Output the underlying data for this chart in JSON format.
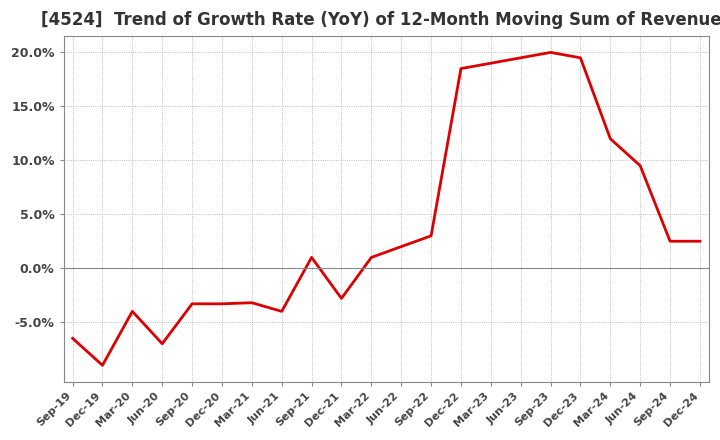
{
  "title": "[4524]  Trend of Growth Rate (YoY) of 12-Month Moving Sum of Revenues",
  "title_fontsize": 12,
  "line_color": "#dd0000",
  "background_color": "#ffffff",
  "plot_bg_color": "#ffffff",
  "grid_color": "#aaaaaa",
  "ylim": [
    -0.105,
    0.215
  ],
  "yticks": [
    -0.05,
    0.0,
    0.05,
    0.1,
    0.15,
    0.2
  ],
  "ytick_labels": [
    "-5.0%",
    "0.0%",
    "5.0%",
    "10.0%",
    "15.0%",
    "20.0%"
  ],
  "dates": [
    "Sep-19",
    "Dec-19",
    "Mar-20",
    "Jun-20",
    "Sep-20",
    "Dec-20",
    "Mar-21",
    "Jun-21",
    "Sep-21",
    "Dec-21",
    "Mar-22",
    "Jun-22",
    "Sep-22",
    "Dec-22",
    "Mar-23",
    "Jun-23",
    "Sep-23",
    "Dec-23",
    "Mar-24",
    "Jun-24",
    "Sep-24",
    "Dec-24"
  ],
  "values": [
    -0.065,
    -0.09,
    -0.04,
    -0.07,
    -0.033,
    -0.033,
    -0.032,
    -0.04,
    0.01,
    -0.028,
    0.01,
    0.02,
    0.03,
    0.185,
    0.19,
    0.195,
    0.2,
    0.195,
    0.12,
    0.095,
    0.025,
    0.025
  ]
}
